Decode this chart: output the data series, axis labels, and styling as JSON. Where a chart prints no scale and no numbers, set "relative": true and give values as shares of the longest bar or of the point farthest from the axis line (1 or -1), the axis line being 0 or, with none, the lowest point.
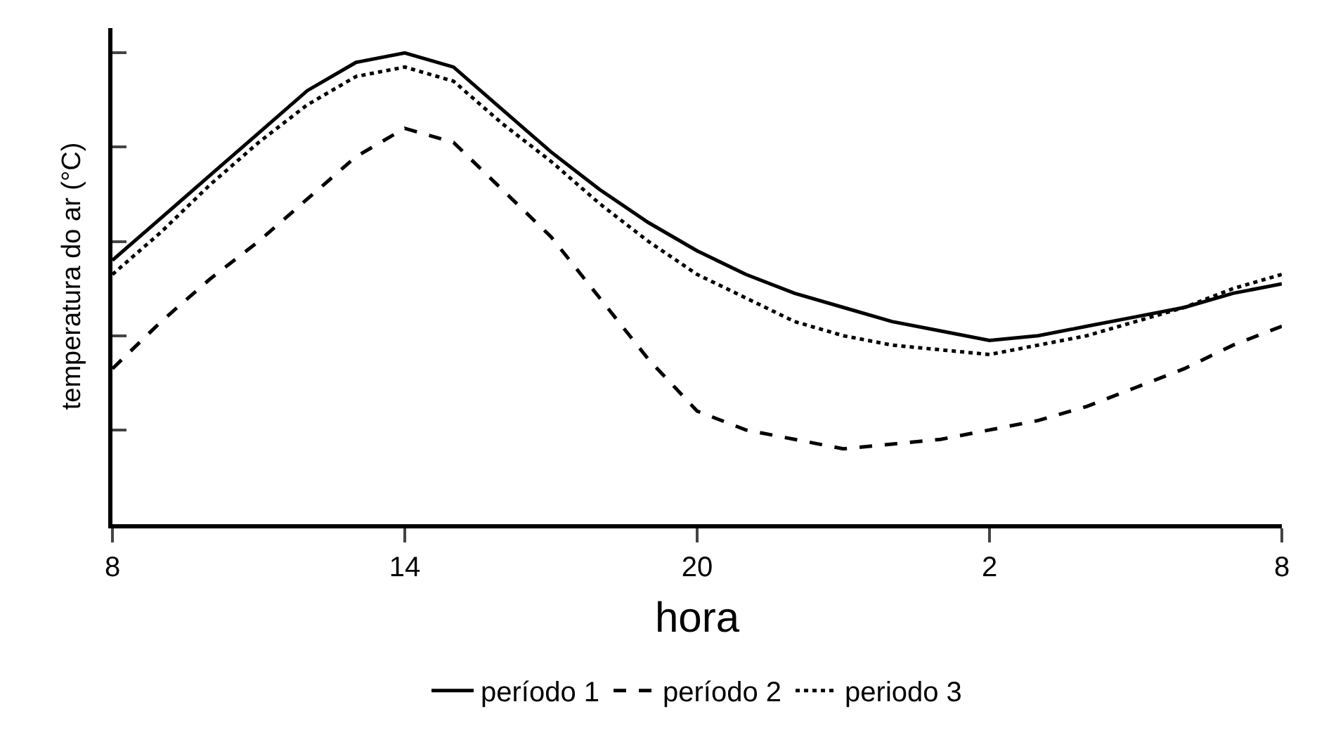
{
  "chart_data": {
    "type": "line",
    "relative": true,
    "xlabel": "hora",
    "ylabel": "temperatura do ar (°C)",
    "categories": [
      "8",
      null,
      null,
      null,
      null,
      null,
      "14",
      null,
      null,
      null,
      null,
      null,
      "20",
      null,
      null,
      null,
      null,
      null,
      "2",
      null,
      null,
      null,
      null,
      null,
      "8"
    ],
    "tick_labels": "x",
    "legend": "bottom",
    "marker": "none",
    "series": [
      {
        "name": "período 1",
        "color": "#000000",
        "line_style": "solid",
        "values": [
          0.56,
          0.65,
          0.74,
          0.83,
          0.92,
          0.98,
          1.0,
          0.97,
          0.88,
          0.79,
          0.71,
          0.64,
          0.58,
          0.53,
          0.49,
          0.46,
          0.43,
          0.41,
          0.39,
          0.4,
          0.42,
          0.44,
          0.46,
          0.49,
          0.51
        ]
      },
      {
        "name": "período 2",
        "color": "#000000",
        "line_style": "dashed",
        "values": [
          0.33,
          0.43,
          0.52,
          0.6,
          0.69,
          0.78,
          0.84,
          0.81,
          0.71,
          0.61,
          0.48,
          0.35,
          0.24,
          0.2,
          0.18,
          0.16,
          0.17,
          0.18,
          0.2,
          0.22,
          0.25,
          0.29,
          0.33,
          0.38,
          0.42
        ]
      },
      {
        "name": "periodo 3",
        "color": "#000000",
        "line_style": "dotted",
        "values": [
          0.53,
          0.62,
          0.72,
          0.81,
          0.89,
          0.95,
          0.97,
          0.94,
          0.85,
          0.77,
          0.68,
          0.6,
          0.53,
          0.48,
          0.43,
          0.4,
          0.38,
          0.37,
          0.36,
          0.38,
          0.4,
          0.43,
          0.46,
          0.5,
          0.53
        ]
      }
    ]
  }
}
